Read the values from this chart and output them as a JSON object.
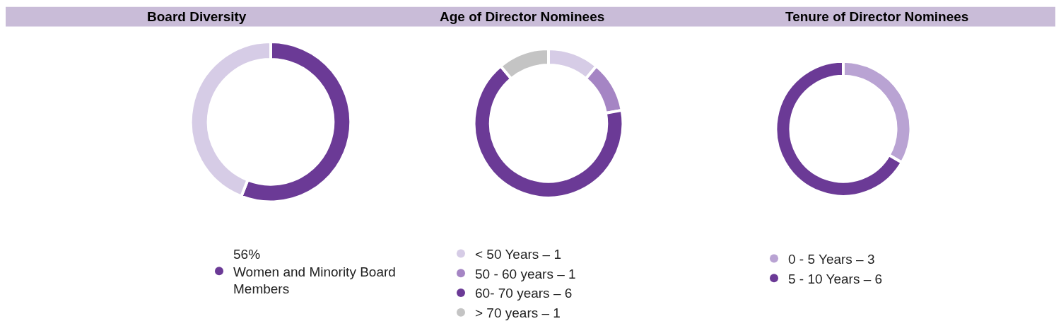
{
  "chart_data": [
    {
      "type": "donut",
      "title": "Board Diversity",
      "categories": [
        "Women and Minority Board Members",
        null
      ],
      "values": [
        56,
        44
      ],
      "value_labels": [
        "56%",
        null
      ],
      "colors": [
        "#6b3a96",
        "#d6cce6"
      ],
      "legend": "bottom"
    },
    {
      "type": "donut",
      "title": "Age of Director Nominees",
      "categories": [
        "< 50 Years – 1",
        "50 - 60 years – 1",
        "60- 70 years – 6",
        "> 70 years – 1"
      ],
      "values": [
        11.1,
        11.1,
        66.7,
        11.1
      ],
      "colors": [
        "#d6cce6",
        "#a585c4",
        "#6b3a96",
        "#c4c4c4"
      ],
      "legend": "bottom"
    },
    {
      "type": "donut",
      "title": "Tenure of Director Nominees",
      "categories": [
        "0 - 5 Years – 3",
        "5 - 10 Years – 6"
      ],
      "values": [
        33.3,
        66.7
      ],
      "colors": [
        "#b9a3d3",
        "#6b3a96"
      ],
      "legend": "bottom"
    }
  ]
}
